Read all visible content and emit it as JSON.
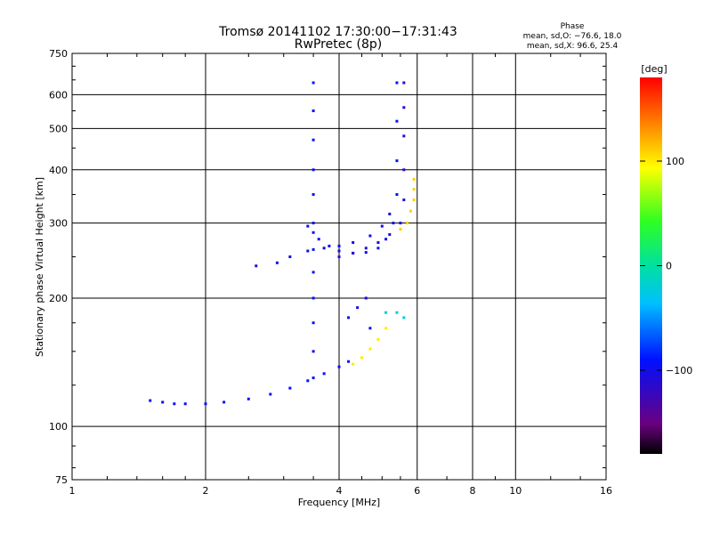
{
  "chart_data": {
    "type": "scatter",
    "title": "Tromsø 20141102 17:30:00−17:31:43",
    "subtitle": "RwPretec (8p)",
    "xlabel": "Frequency [MHz]",
    "ylabel": "Stationary phase Virtual Height [km]",
    "x_scale": "log",
    "y_scale": "log",
    "xlim": [
      1,
      16
    ],
    "ylim": [
      75,
      750
    ],
    "x_ticks": [
      "1",
      "2",
      "4",
      "6",
      "8",
      "10",
      "16"
    ],
    "y_ticks": [
      "75",
      "100",
      "200",
      "300",
      "400",
      "500",
      "600",
      "750"
    ],
    "grid": true,
    "phase_stats": {
      "heading": "Phase",
      "line_o": "mean, sd,O: −76.6, 18.0",
      "line_x": "mean, sd,X:  96.6, 25.4"
    },
    "colorbar": {
      "label": "[deg]",
      "range": [
        -180,
        180
      ],
      "ticks": [
        "100",
        "0",
        "−100"
      ]
    },
    "traces": [
      {
        "name": "",
        "phase": -90,
        "x": [
          1.5,
          1.6,
          1.7,
          1.8,
          2.0,
          2.2,
          2.5,
          2.8,
          3.1,
          3.4,
          3.7,
          4.0,
          4.2
        ],
        "y": [
          115,
          114,
          113,
          113,
          113,
          114,
          116,
          119,
          123,
          128,
          133,
          138,
          142
        ]
      },
      {
        "name": "",
        "phase": -95,
        "x": [
          3.5,
          3.5,
          3.5,
          3.5,
          3.5,
          3.5,
          3.5,
          3.5,
          3.5,
          3.5,
          3.5,
          3.5
        ],
        "y": [
          130,
          150,
          175,
          200,
          230,
          260,
          300,
          350,
          400,
          470,
          550,
          640
        ]
      },
      {
        "name": "",
        "phase": -100,
        "x": [
          2.6,
          2.9,
          3.1,
          3.4,
          3.7,
          4.0,
          4.3,
          4.7,
          5.0,
          5.2
        ],
        "y": [
          238,
          242,
          250,
          258,
          262,
          265,
          270,
          280,
          295,
          315
        ]
      },
      {
        "name": "",
        "phase": -95,
        "x": [
          3.4,
          3.5,
          3.6,
          3.8,
          4.0,
          4.3,
          4.6,
          4.9,
          5.1,
          5.3,
          5.4,
          5.4,
          5.4,
          5.4
        ],
        "y": [
          295,
          285,
          275,
          265,
          258,
          255,
          256,
          262,
          275,
          300,
          350,
          420,
          520,
          640
        ]
      },
      {
        "name": "",
        "phase": -110,
        "x": [
          4.0,
          4.3,
          4.6,
          4.9,
          5.2,
          5.5,
          5.6,
          5.6,
          5.6,
          5.6,
          5.6
        ],
        "y": [
          250,
          255,
          262,
          270,
          282,
          300,
          340,
          400,
          480,
          560,
          640
        ]
      },
      {
        "name": "",
        "phase": 100,
        "x": [
          4.3,
          4.5,
          4.7,
          4.9,
          5.1
        ],
        "y": [
          140,
          145,
          152,
          160,
          170
        ]
      },
      {
        "name": "",
        "phase": 110,
        "x": [
          5.5,
          5.7,
          5.8,
          5.9,
          5.9,
          5.9
        ],
        "y": [
          290,
          300,
          320,
          340,
          360,
          380
        ]
      },
      {
        "name": "",
        "phase": -100,
        "x": [
          4.2,
          4.4,
          4.6,
          4.7
        ],
        "y": [
          180,
          190,
          200,
          170
        ]
      },
      {
        "name": "",
        "phase": -20,
        "x": [
          5.1,
          5.4,
          5.6
        ],
        "y": [
          185,
          185,
          180
        ]
      }
    ]
  }
}
